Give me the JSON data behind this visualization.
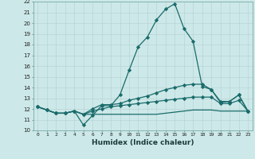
{
  "xlabel": "Humidex (Indice chaleur)",
  "xlim": [
    -0.5,
    23.5
  ],
  "ylim": [
    10,
    22
  ],
  "yticks": [
    10,
    11,
    12,
    13,
    14,
    15,
    16,
    17,
    18,
    19,
    20,
    21,
    22
  ],
  "xticks": [
    0,
    1,
    2,
    3,
    4,
    5,
    6,
    7,
    8,
    9,
    10,
    11,
    12,
    13,
    14,
    15,
    16,
    17,
    18,
    19,
    20,
    21,
    22,
    23
  ],
  "background_color": "#cde8e8",
  "grid_color": "#b8d4d4",
  "line_color": "#1a6b6b",
  "line1": [
    12.2,
    11.9,
    11.6,
    11.6,
    11.8,
    10.5,
    11.4,
    12.3,
    12.3,
    13.3,
    15.6,
    17.8,
    18.7,
    20.3,
    21.3,
    21.8,
    19.5,
    18.3,
    14.1,
    13.8,
    12.6,
    12.7,
    13.3,
    11.8
  ],
  "line2": [
    12.2,
    11.9,
    11.6,
    11.6,
    11.8,
    11.5,
    12.0,
    12.4,
    12.4,
    12.5,
    12.8,
    13.0,
    13.2,
    13.5,
    13.8,
    14.0,
    14.2,
    14.3,
    14.3,
    13.8,
    12.7,
    12.7,
    13.3,
    11.8
  ],
  "line3": [
    12.2,
    11.9,
    11.6,
    11.6,
    11.8,
    11.5,
    11.8,
    12.0,
    12.2,
    12.3,
    12.4,
    12.5,
    12.6,
    12.7,
    12.8,
    12.9,
    13.0,
    13.1,
    13.1,
    13.1,
    12.5,
    12.5,
    12.8,
    11.8
  ],
  "line4": [
    12.2,
    11.9,
    11.6,
    11.6,
    11.8,
    11.5,
    11.5,
    11.5,
    11.5,
    11.5,
    11.5,
    11.5,
    11.5,
    11.5,
    11.6,
    11.7,
    11.8,
    11.9,
    11.9,
    11.9,
    11.8,
    11.8,
    11.8,
    11.8
  ]
}
